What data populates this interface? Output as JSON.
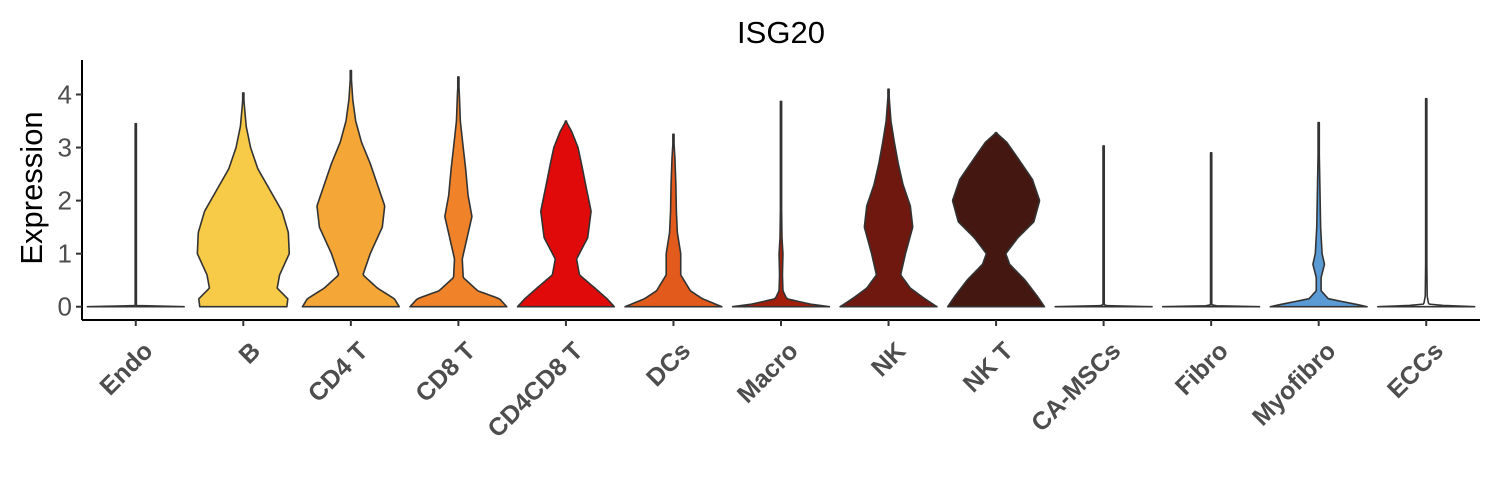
{
  "chart_data": {
    "type": "violin",
    "title": "ISG20",
    "xlabel": "",
    "ylabel": "Expression",
    "ylim": [
      -0.25,
      4.65
    ],
    "yticks": [
      0,
      1,
      2,
      3,
      4
    ],
    "grid": false,
    "legend": "none",
    "categories": [
      "Endo",
      "B",
      "CD4 T",
      "CD8 T",
      "CD4CD8 T",
      "DCs",
      "Macro",
      "NK",
      "NK T",
      "CA-MSCs",
      "Fibro",
      "Myofibro",
      "ECCs"
    ],
    "colors": [
      "#FFFFFF",
      "#F7CB47",
      "#F4A736",
      "#F0822A",
      "#E00A0A",
      "#E35B1C",
      "#A41E0C",
      "#6E180F",
      "#441710",
      "#FFFFFF",
      "#FFFFFF",
      "#5B9BD5",
      "#FFFFFF"
    ],
    "max_values": [
      3.45,
      4.03,
      4.45,
      4.33,
      3.5,
      3.25,
      3.87,
      4.1,
      3.28,
      3.03,
      2.9,
      3.47,
      3.92
    ],
    "density_profiles": [
      [
        [
          0.0,
          1.0
        ],
        [
          0.02,
          0.02
        ],
        [
          0.05,
          0.01
        ],
        [
          0.3,
          0.005
        ],
        [
          3.45,
          0.0
        ]
      ],
      [
        [
          0.0,
          0.9
        ],
        [
          0.15,
          0.92
        ],
        [
          0.35,
          0.7
        ],
        [
          0.6,
          0.75
        ],
        [
          1.0,
          0.95
        ],
        [
          1.4,
          0.93
        ],
        [
          1.8,
          0.8
        ],
        [
          2.2,
          0.55
        ],
        [
          2.6,
          0.3
        ],
        [
          3.0,
          0.15
        ],
        [
          3.4,
          0.06
        ],
        [
          3.7,
          0.03
        ],
        [
          4.03,
          0.0
        ]
      ],
      [
        [
          0.0,
          1.0
        ],
        [
          0.15,
          0.9
        ],
        [
          0.35,
          0.55
        ],
        [
          0.6,
          0.25
        ],
        [
          1.0,
          0.4
        ],
        [
          1.5,
          0.65
        ],
        [
          1.9,
          0.7
        ],
        [
          2.3,
          0.55
        ],
        [
          2.7,
          0.4
        ],
        [
          3.1,
          0.22
        ],
        [
          3.5,
          0.1
        ],
        [
          3.9,
          0.04
        ],
        [
          4.45,
          0.0
        ]
      ],
      [
        [
          0.0,
          1.0
        ],
        [
          0.15,
          0.85
        ],
        [
          0.3,
          0.4
        ],
        [
          0.55,
          0.1
        ],
        [
          0.9,
          0.08
        ],
        [
          1.3,
          0.18
        ],
        [
          1.7,
          0.28
        ],
        [
          2.1,
          0.2
        ],
        [
          2.6,
          0.15
        ],
        [
          3.0,
          0.1
        ],
        [
          3.5,
          0.04
        ],
        [
          4.0,
          0.02
        ],
        [
          4.33,
          0.0
        ]
      ],
      [
        [
          0.0,
          1.0
        ],
        [
          0.15,
          0.85
        ],
        [
          0.35,
          0.6
        ],
        [
          0.6,
          0.28
        ],
        [
          0.9,
          0.22
        ],
        [
          1.3,
          0.45
        ],
        [
          1.8,
          0.52
        ],
        [
          2.2,
          0.43
        ],
        [
          2.7,
          0.32
        ],
        [
          3.0,
          0.25
        ],
        [
          3.3,
          0.12
        ],
        [
          3.5,
          0.0
        ]
      ],
      [
        [
          0.0,
          1.0
        ],
        [
          0.15,
          0.6
        ],
        [
          0.3,
          0.35
        ],
        [
          0.6,
          0.15
        ],
        [
          1.0,
          0.15
        ],
        [
          1.4,
          0.08
        ],
        [
          1.8,
          0.06
        ],
        [
          2.3,
          0.05
        ],
        [
          2.8,
          0.03
        ],
        [
          3.25,
          0.0
        ]
      ],
      [
        [
          0.0,
          1.0
        ],
        [
          0.05,
          0.6
        ],
        [
          0.15,
          0.12
        ],
        [
          0.3,
          0.04
        ],
        [
          0.6,
          0.03
        ],
        [
          1.0,
          0.04
        ],
        [
          1.3,
          0.02
        ],
        [
          2.0,
          0.01
        ],
        [
          3.0,
          0.005
        ],
        [
          3.87,
          0.0
        ]
      ],
      [
        [
          0.0,
          1.0
        ],
        [
          0.15,
          0.75
        ],
        [
          0.35,
          0.45
        ],
        [
          0.6,
          0.25
        ],
        [
          1.0,
          0.35
        ],
        [
          1.5,
          0.5
        ],
        [
          1.9,
          0.45
        ],
        [
          2.3,
          0.3
        ],
        [
          2.7,
          0.2
        ],
        [
          3.1,
          0.12
        ],
        [
          3.5,
          0.05
        ],
        [
          4.1,
          0.0
        ]
      ],
      [
        [
          0.0,
          1.0
        ],
        [
          0.2,
          0.85
        ],
        [
          0.5,
          0.6
        ],
        [
          0.8,
          0.28
        ],
        [
          1.0,
          0.2
        ],
        [
          1.3,
          0.45
        ],
        [
          1.6,
          0.78
        ],
        [
          2.0,
          0.9
        ],
        [
          2.4,
          0.75
        ],
        [
          2.8,
          0.45
        ],
        [
          3.1,
          0.22
        ],
        [
          3.28,
          0.0
        ]
      ],
      [
        [
          0.0,
          1.0
        ],
        [
          0.02,
          0.02
        ],
        [
          0.05,
          0.01
        ],
        [
          0.3,
          0.005
        ],
        [
          3.03,
          0.0
        ]
      ],
      [
        [
          0.0,
          1.0
        ],
        [
          0.02,
          0.02
        ],
        [
          0.05,
          0.01
        ],
        [
          0.3,
          0.005
        ],
        [
          2.9,
          0.0
        ]
      ],
      [
        [
          0.0,
          1.0
        ],
        [
          0.05,
          0.75
        ],
        [
          0.15,
          0.2
        ],
        [
          0.3,
          0.05
        ],
        [
          0.55,
          0.05
        ],
        [
          0.8,
          0.12
        ],
        [
          1.0,
          0.07
        ],
        [
          1.5,
          0.04
        ],
        [
          2.0,
          0.03
        ],
        [
          2.5,
          0.02
        ],
        [
          3.47,
          0.0
        ]
      ],
      [
        [
          0.0,
          1.0
        ],
        [
          0.02,
          0.4
        ],
        [
          0.05,
          0.05
        ],
        [
          0.2,
          0.02
        ],
        [
          1.0,
          0.01
        ],
        [
          2.0,
          0.005
        ],
        [
          3.92,
          0.0
        ]
      ]
    ]
  }
}
